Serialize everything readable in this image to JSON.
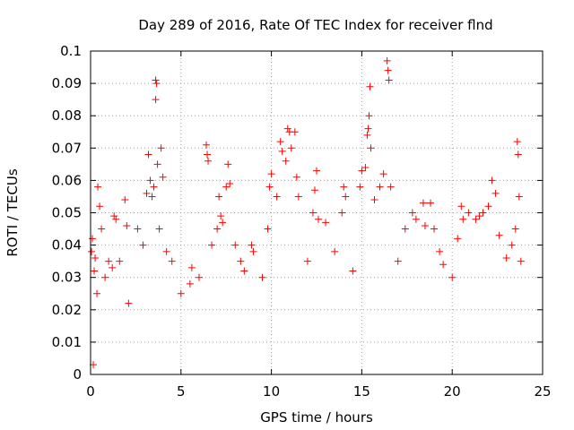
{
  "chart_data": {
    "type": "scatter",
    "title": "Day 289 of 2016, Rate Of TEC Index for receiver flnd",
    "xlabel": "GPS time / hours",
    "ylabel": "ROTI / TECUs",
    "xlim": [
      0,
      25
    ],
    "ylim": [
      0,
      0.1
    ],
    "xticks": [
      "0",
      "5",
      "10",
      "15",
      "20",
      "25"
    ],
    "yticks": [
      "0",
      "0.01",
      "0.02",
      "0.03",
      "0.04",
      "0.05",
      "0.06",
      "0.07",
      "0.08",
      "0.09",
      "0.1"
    ],
    "grid": true,
    "marker": "+",
    "color": "#ff0000",
    "series": [
      {
        "name": "ROTI",
        "points": [
          [
            0.05,
            0.038
          ],
          [
            0.1,
            0.042
          ],
          [
            0.15,
            0.003
          ],
          [
            0.2,
            0.032
          ],
          [
            0.25,
            0.036
          ],
          [
            0.35,
            0.025
          ],
          [
            0.4,
            0.058
          ],
          [
            0.5,
            0.052
          ],
          [
            0.6,
            0.045
          ],
          [
            0.8,
            0.03
          ],
          [
            1.0,
            0.035
          ],
          [
            1.2,
            0.033
          ],
          [
            1.3,
            0.049
          ],
          [
            1.4,
            0.048
          ],
          [
            1.6,
            0.035
          ],
          [
            1.9,
            0.054
          ],
          [
            2.0,
            0.046
          ],
          [
            2.1,
            0.022
          ],
          [
            2.6,
            0.045
          ],
          [
            2.9,
            0.04
          ],
          [
            3.1,
            0.056
          ],
          [
            3.2,
            0.068
          ],
          [
            3.3,
            0.06
          ],
          [
            3.4,
            0.055
          ],
          [
            3.5,
            0.058
          ],
          [
            3.6,
            0.091
          ],
          [
            3.65,
            0.09
          ],
          [
            3.6,
            0.085
          ],
          [
            3.7,
            0.065
          ],
          [
            3.8,
            0.045
          ],
          [
            3.9,
            0.07
          ],
          [
            4.0,
            0.061
          ],
          [
            4.2,
            0.038
          ],
          [
            4.5,
            0.035
          ],
          [
            5.0,
            0.025
          ],
          [
            5.5,
            0.028
          ],
          [
            5.6,
            0.033
          ],
          [
            6.0,
            0.03
          ],
          [
            6.4,
            0.071
          ],
          [
            6.45,
            0.068
          ],
          [
            6.5,
            0.066
          ],
          [
            6.7,
            0.04
          ],
          [
            7.0,
            0.045
          ],
          [
            7.1,
            0.055
          ],
          [
            7.2,
            0.049
          ],
          [
            7.3,
            0.047
          ],
          [
            7.5,
            0.058
          ],
          [
            7.6,
            0.065
          ],
          [
            7.7,
            0.059
          ],
          [
            8.0,
            0.04
          ],
          [
            8.3,
            0.035
          ],
          [
            8.5,
            0.032
          ],
          [
            8.9,
            0.04
          ],
          [
            9.0,
            0.038
          ],
          [
            9.5,
            0.03
          ],
          [
            9.8,
            0.045
          ],
          [
            9.9,
            0.058
          ],
          [
            10.0,
            0.062
          ],
          [
            10.3,
            0.055
          ],
          [
            10.5,
            0.072
          ],
          [
            10.6,
            0.069
          ],
          [
            10.8,
            0.066
          ],
          [
            10.9,
            0.076
          ],
          [
            11.0,
            0.075
          ],
          [
            11.1,
            0.07
          ],
          [
            11.3,
            0.075
          ],
          [
            11.4,
            0.061
          ],
          [
            11.5,
            0.055
          ],
          [
            12.0,
            0.035
          ],
          [
            12.3,
            0.05
          ],
          [
            12.4,
            0.057
          ],
          [
            12.5,
            0.063
          ],
          [
            12.6,
            0.048
          ],
          [
            13.0,
            0.047
          ],
          [
            13.5,
            0.038
          ],
          [
            13.9,
            0.05
          ],
          [
            14.0,
            0.058
          ],
          [
            14.1,
            0.055
          ],
          [
            14.5,
            0.032
          ],
          [
            14.9,
            0.058
          ],
          [
            15.0,
            0.063
          ],
          [
            15.2,
            0.064
          ],
          [
            15.3,
            0.074
          ],
          [
            15.35,
            0.076
          ],
          [
            15.4,
            0.08
          ],
          [
            15.45,
            0.089
          ],
          [
            15.5,
            0.07
          ],
          [
            15.7,
            0.054
          ],
          [
            16.0,
            0.058
          ],
          [
            16.2,
            0.062
          ],
          [
            16.4,
            0.097
          ],
          [
            16.45,
            0.094
          ],
          [
            16.5,
            0.091
          ],
          [
            16.6,
            0.058
          ],
          [
            17.0,
            0.035
          ],
          [
            17.4,
            0.045
          ],
          [
            17.8,
            0.05
          ],
          [
            18.0,
            0.048
          ],
          [
            18.4,
            0.053
          ],
          [
            18.5,
            0.046
          ],
          [
            18.8,
            0.053
          ],
          [
            19.0,
            0.045
          ],
          [
            19.3,
            0.038
          ],
          [
            19.5,
            0.034
          ],
          [
            20.0,
            0.03
          ],
          [
            20.3,
            0.042
          ],
          [
            20.5,
            0.052
          ],
          [
            20.6,
            0.048
          ],
          [
            20.9,
            0.05
          ],
          [
            21.3,
            0.048
          ],
          [
            21.5,
            0.049
          ],
          [
            21.7,
            0.05
          ],
          [
            22.0,
            0.052
          ],
          [
            22.2,
            0.06
          ],
          [
            22.4,
            0.056
          ],
          [
            22.6,
            0.043
          ],
          [
            23.0,
            0.036
          ],
          [
            23.3,
            0.04
          ],
          [
            23.5,
            0.045
          ],
          [
            23.6,
            0.072
          ],
          [
            23.65,
            0.068
          ],
          [
            23.7,
            0.055
          ],
          [
            23.8,
            0.035
          ]
        ]
      }
    ]
  }
}
